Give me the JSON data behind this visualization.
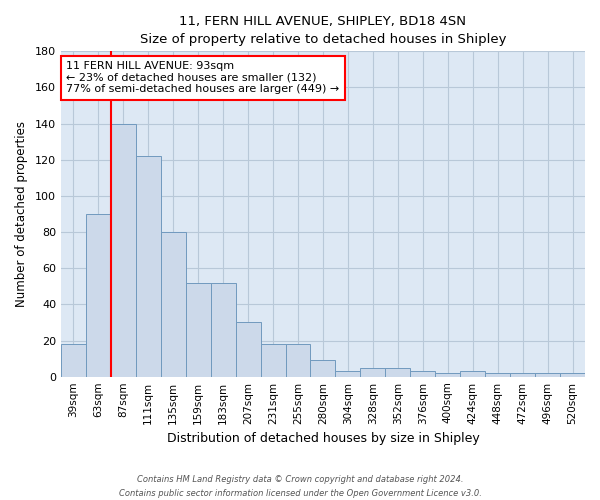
{
  "title": "11, FERN HILL AVENUE, SHIPLEY, BD18 4SN",
  "subtitle": "Size of property relative to detached houses in Shipley",
  "xlabel": "Distribution of detached houses by size in Shipley",
  "ylabel": "Number of detached properties",
  "bar_color": "#ccd9ea",
  "bar_edge_color": "#7099be",
  "background_color": "#ffffff",
  "plot_bg_color": "#dde8f4",
  "grid_color": "#b8c8d8",
  "categories": [
    "39sqm",
    "63sqm",
    "87sqm",
    "111sqm",
    "135sqm",
    "159sqm",
    "183sqm",
    "207sqm",
    "231sqm",
    "255sqm",
    "280sqm",
    "304sqm",
    "328sqm",
    "352sqm",
    "376sqm",
    "400sqm",
    "424sqm",
    "448sqm",
    "472sqm",
    "496sqm",
    "520sqm"
  ],
  "values": [
    18,
    90,
    140,
    122,
    80,
    52,
    52,
    30,
    18,
    18,
    9,
    3,
    5,
    5,
    3,
    2,
    3,
    2,
    2,
    2,
    2
  ],
  "ylim": [
    0,
    180
  ],
  "yticks": [
    0,
    20,
    40,
    60,
    80,
    100,
    120,
    140,
    160,
    180
  ],
  "red_line_bar_index": 2,
  "annotation_line1": "11 FERN HILL AVENUE: 93sqm",
  "annotation_line2": "← 23% of detached houses are smaller (132)",
  "annotation_line3": "77% of semi-detached houses are larger (449) →",
  "footer_line1": "Contains HM Land Registry data © Crown copyright and database right 2024.",
  "footer_line2": "Contains public sector information licensed under the Open Government Licence v3.0."
}
